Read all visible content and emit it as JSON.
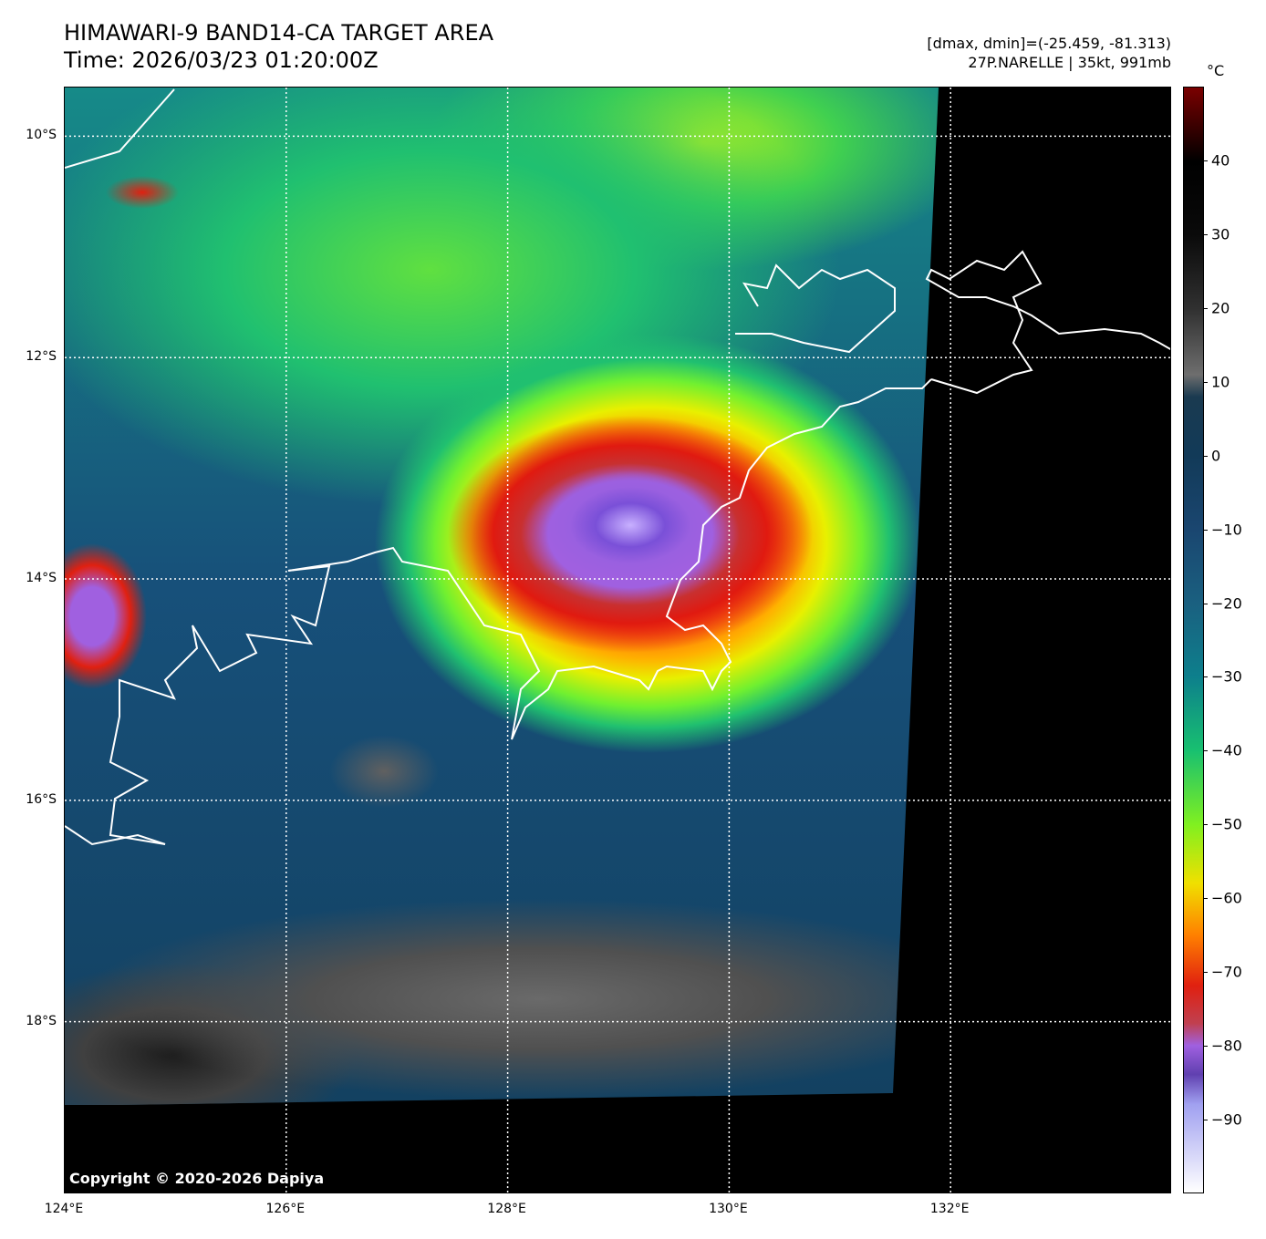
{
  "header": {
    "title": "HIMAWARI-9 BAND14-CA TARGET AREA",
    "time": "Time: 2026/03/23 01:20:00Z",
    "range": "[dmax, dmin]=(-25.459, -81.313)",
    "storm": "27P.NARELLE | 35kt, 991mb"
  },
  "map": {
    "lon_range": [
      124,
      134
    ],
    "lat_range": [
      -9.56,
      -19.56
    ],
    "lat_labels": [
      {
        "lat": -10,
        "label": "10°S"
      },
      {
        "lat": -12,
        "label": "12°S"
      },
      {
        "lat": -14,
        "label": "14°S"
      },
      {
        "lat": -16,
        "label": "16°S"
      },
      {
        "lat": -18,
        "label": "18°S"
      }
    ],
    "lon_labels": [
      {
        "lon": 124,
        "label": "124°E"
      },
      {
        "lon": 126,
        "label": "126°E"
      },
      {
        "lon": 128,
        "label": "128°E"
      },
      {
        "lon": 130,
        "label": "130°E"
      },
      {
        "lon": 132,
        "label": "132°E"
      }
    ],
    "copyright": "Copyright © 2020-2026 Dapiya"
  },
  "colorbar": {
    "unit": "°C",
    "range": [
      -100,
      50
    ],
    "ticks": [
      {
        "v": 40,
        "label": "40"
      },
      {
        "v": 30,
        "label": "30"
      },
      {
        "v": 20,
        "label": "20"
      },
      {
        "v": 10,
        "label": "10"
      },
      {
        "v": 0,
        "label": "0"
      },
      {
        "v": -10,
        "label": "−10"
      },
      {
        "v": -20,
        "label": "−20"
      },
      {
        "v": -30,
        "label": "−30"
      },
      {
        "v": -40,
        "label": "−40"
      },
      {
        "v": -50,
        "label": "−50"
      },
      {
        "v": -60,
        "label": "−60"
      },
      {
        "v": -70,
        "label": "−70"
      },
      {
        "v": -80,
        "label": "−80"
      },
      {
        "v": -90,
        "label": "−90"
      }
    ]
  }
}
